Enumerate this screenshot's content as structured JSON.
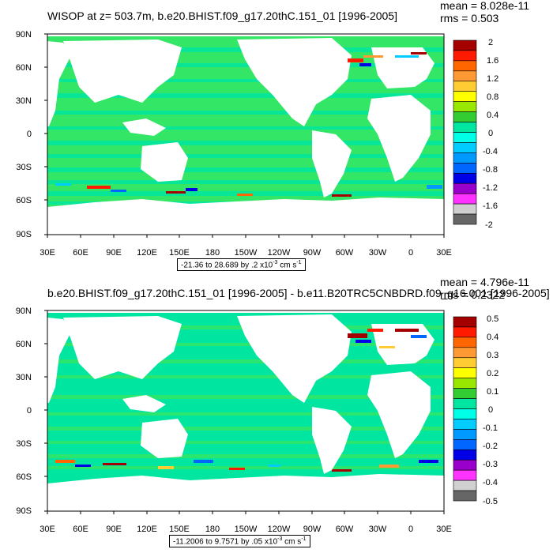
{
  "panels": [
    {
      "title": "WISOP at z= 503.7m, b.e20.BHIST.f09_g17.20thC.151_01 [1996-2005]",
      "mean": "mean = 8.028e-11",
      "rms": "rms = 0.503",
      "range_prefix": "-21.36 to 28.689 by .2 x10",
      "range_exp": "-3",
      "range_unit": " cm s",
      "range_unit_exp": "-1",
      "colorbar": {
        "labels": [
          "2",
          "1.6",
          "1.2",
          "0.8",
          "0.4",
          "0",
          "-0.4",
          "-0.8",
          "-1.2",
          "-1.6",
          "-2"
        ],
        "colors": [
          "#a50000",
          "#ff1a00",
          "#ff6600",
          "#ff9933",
          "#ffcc33",
          "#ffff00",
          "#99e600",
          "#33cc33",
          "#00e6a0",
          "#00ffe6",
          "#00ccff",
          "#0099ff",
          "#0066ff",
          "#0000e6",
          "#9900cc",
          "#ff33ff",
          "#d0d0d0",
          "#666666"
        ]
      }
    },
    {
      "title": "b.e20.BHIST.f09_g17.20thC.151_01 [1996-2005] - b.e11.B20TRC5CNBDRD.f09_g16.001 [1996-2005]",
      "mean": "mean = 4.796e-11",
      "rms": "rms = 0.2322",
      "range_prefix": "-11.2006 to 9.7571 by .05 x10",
      "range_exp": "-3",
      "range_unit": " cm s",
      "range_unit_exp": "-1",
      "colorbar": {
        "labels": [
          "0.5",
          "0.4",
          "0.3",
          "0.2",
          "0.1",
          "0",
          "-0.1",
          "-0.2",
          "-0.3",
          "-0.4",
          "-0.5"
        ],
        "colors": [
          "#a50000",
          "#ff1a00",
          "#ff6600",
          "#ff9933",
          "#ffcc33",
          "#ffff00",
          "#99e600",
          "#33cc33",
          "#00e6a0",
          "#00ffe6",
          "#00ccff",
          "#0099ff",
          "#0066ff",
          "#0000e6",
          "#9900cc",
          "#ff33ff",
          "#d0d0d0",
          "#666666"
        ]
      }
    }
  ],
  "lat_labels": [
    "90N",
    "60N",
    "30N",
    "0",
    "30S",
    "60S",
    "90S"
  ],
  "lon_labels": [
    "30E",
    "60E",
    "90E",
    "120E",
    "150E",
    "180",
    "150W",
    "120W",
    "90W",
    "60W",
    "30W",
    "0",
    "30E"
  ],
  "colors": {
    "ocean_main": "#33e666",
    "ocean_alt": "#00e6a0",
    "land": "#ffffff"
  }
}
